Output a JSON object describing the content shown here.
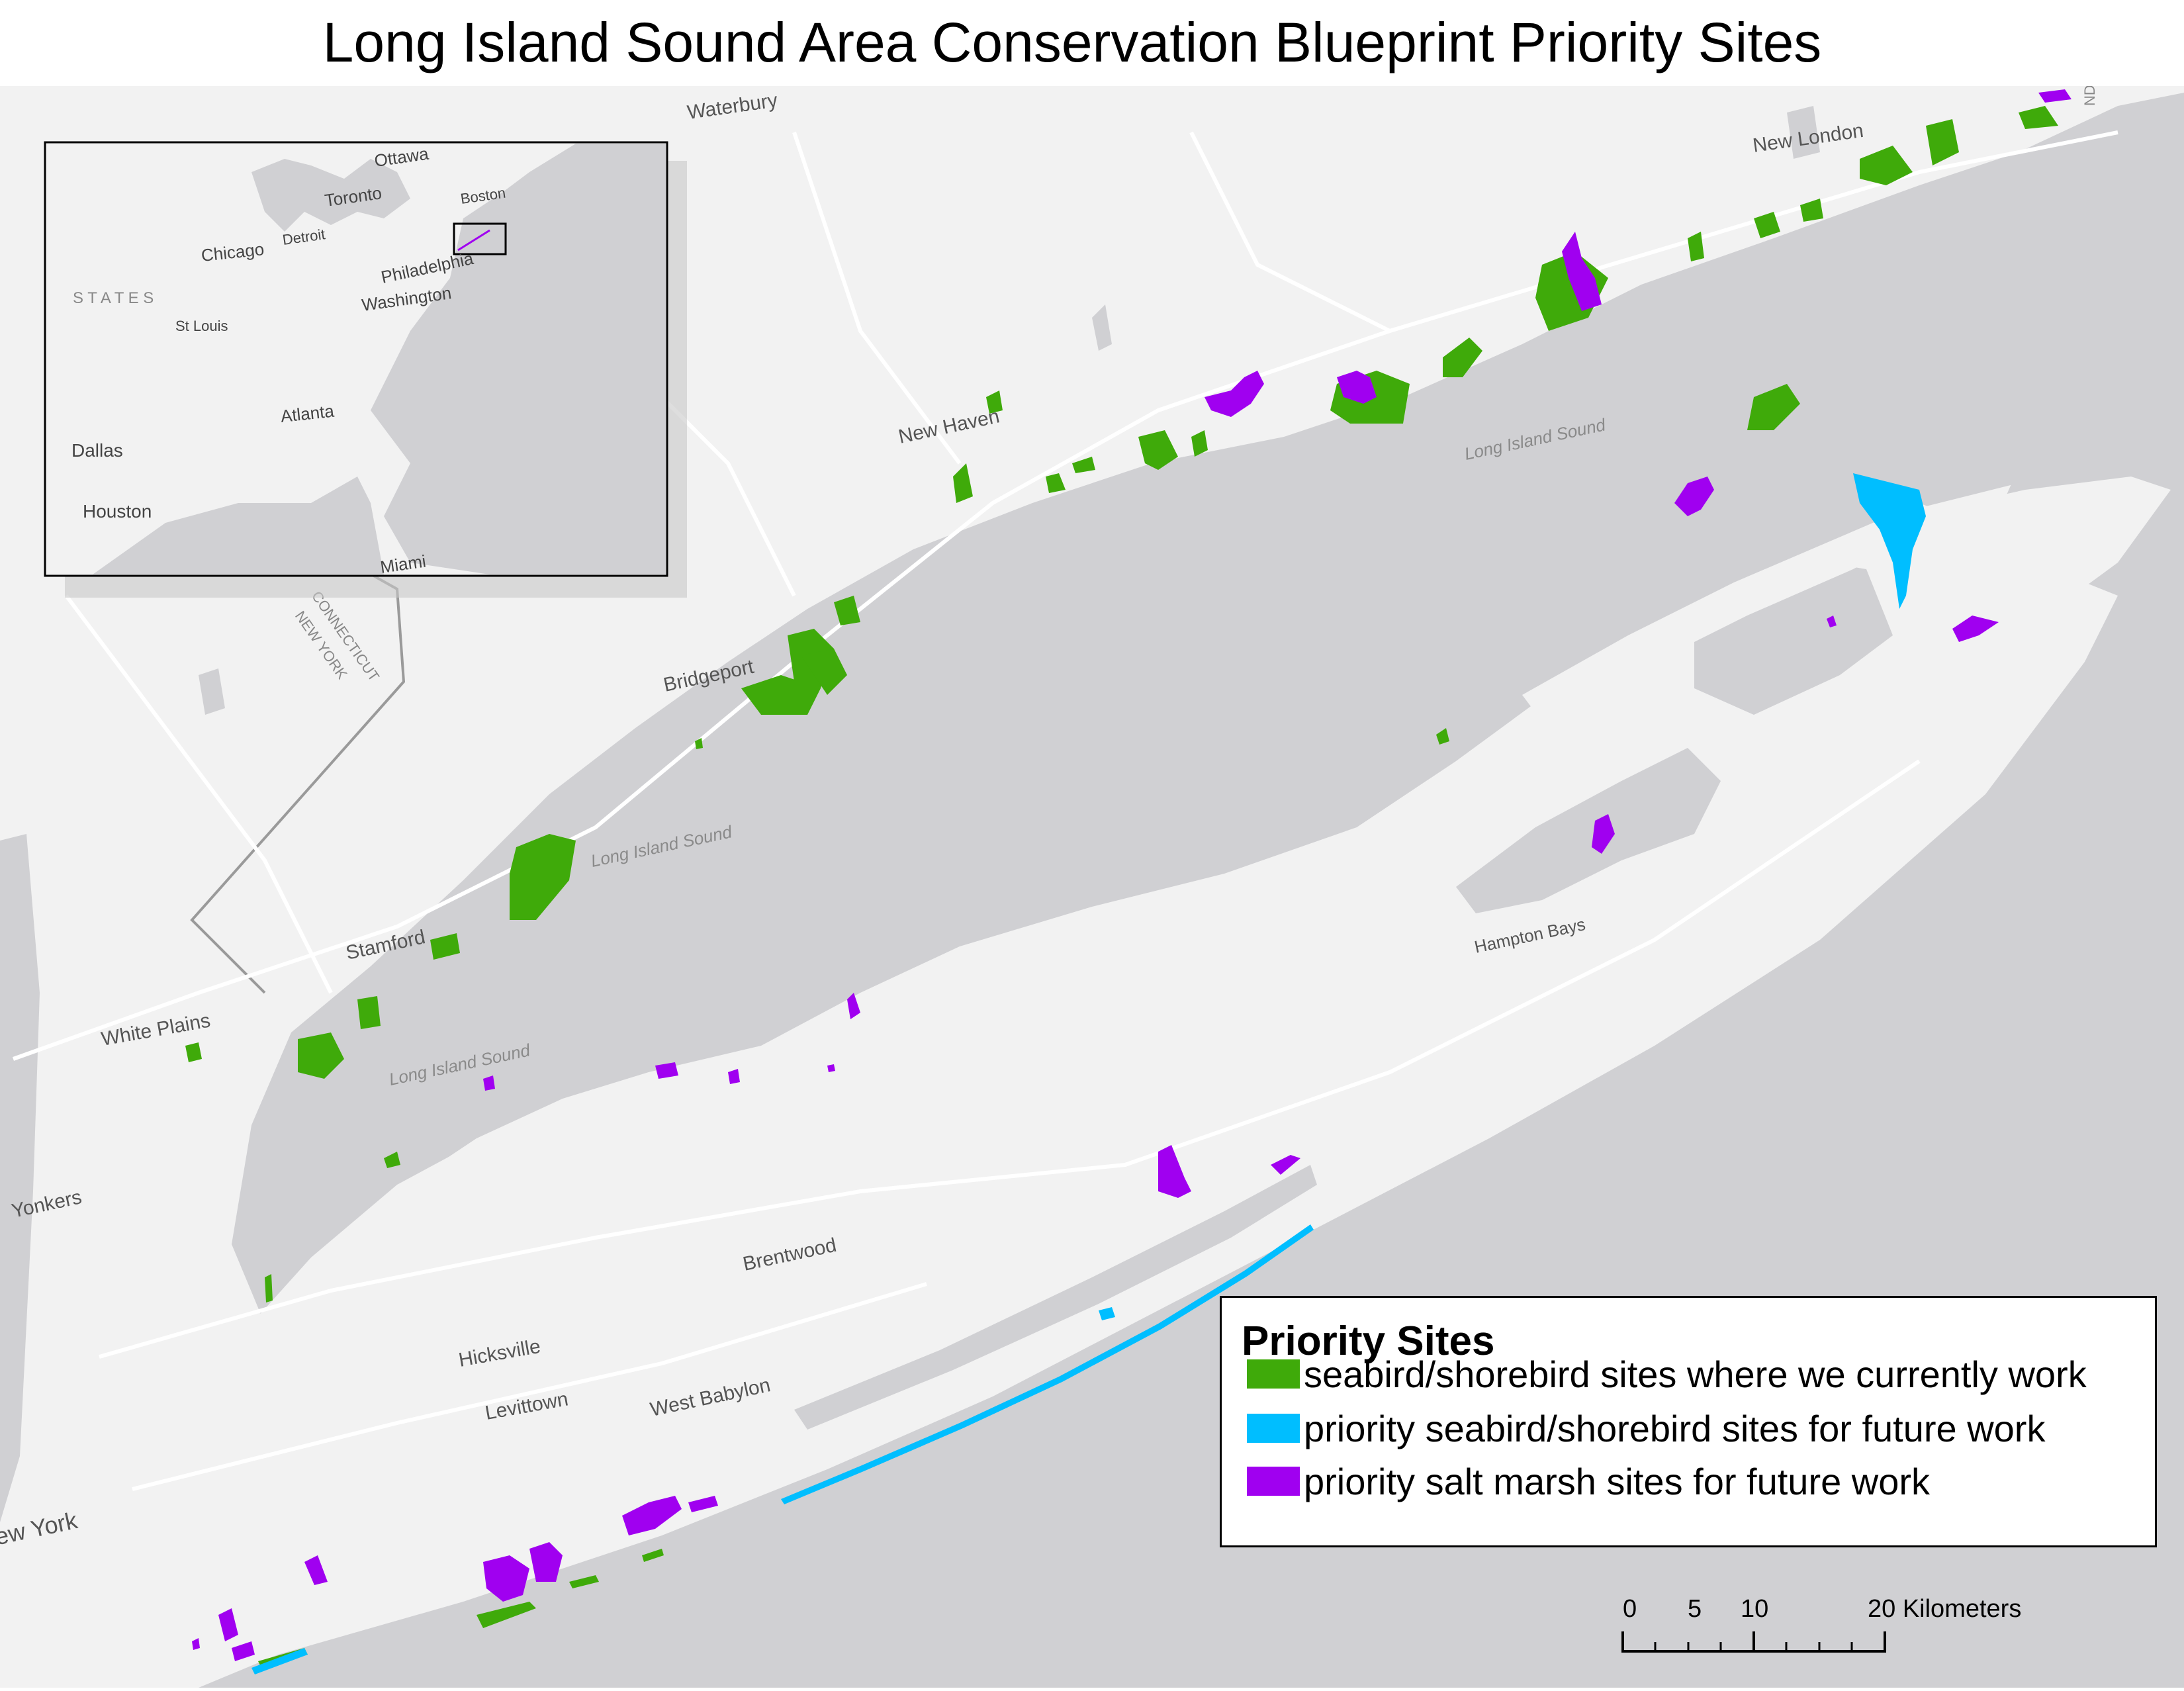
{
  "title": "Long Island Sound Area Conservation Blueprint Priority Sites",
  "colors": {
    "land": "#f2f2f2",
    "water": "#d0d0d3",
    "roads": "#ffffff",
    "border": "#9a9a9a",
    "seabird_current": "#3faa0a",
    "seabird_future": "#00beff",
    "salt_marsh_future": "#a000f0"
  },
  "inset": {
    "labels": [
      "Ottawa",
      "Toronto",
      "Boston",
      "Detroit",
      "Chicago",
      "Philadelphia",
      "Washington",
      "S T A T E S",
      "St Louis",
      "Atlanta",
      "Dallas",
      "Houston",
      "Miami"
    ]
  },
  "places": {
    "waterbury": "Waterbury",
    "new_london": "New London",
    "new_haven": "New Haven",
    "bridgeport": "Bridgeport",
    "stamford": "Stamford",
    "white_plains": "White Plains",
    "yonkers": "Yonkers",
    "new_york": "New York",
    "hicksville": "Hicksville",
    "levittown": "Levittown",
    "west_babylon": "West Babylon",
    "brentwood": "Brentwood",
    "hampton_bays": "Hampton Bays",
    "sound_label_1": "Long Island Sound",
    "sound_label_2": "Long Island Sound",
    "sound_label_3": "Long Island Sound",
    "connecticut": "CONNECTICUT",
    "new_york_state": "NEW YORK",
    "rhode_island_fragment": "ND"
  },
  "legend": {
    "title": "Priority Sites",
    "items": [
      {
        "label": "seabird/shorebird sites where we currently work",
        "color": "#3faa0a"
      },
      {
        "label": "priority seabird/shorebird sites for future work",
        "color": "#00beff"
      },
      {
        "label": "priority salt marsh sites for future work",
        "color": "#a000f0"
      }
    ]
  },
  "scale_bar": {
    "labels": [
      "0",
      "5",
      "10",
      "20 Kilometers"
    ]
  }
}
